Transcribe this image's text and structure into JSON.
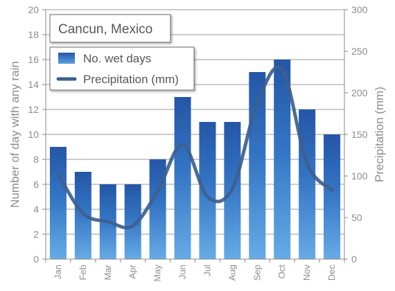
{
  "chart_data": {
    "type": "bar",
    "title": "Cancun, Mexico",
    "categories": [
      "Jan",
      "Feb",
      "Mar",
      "Apr",
      "May",
      "Jun",
      "Jul",
      "Aug",
      "Sep",
      "Oct",
      "Nov",
      "Dec"
    ],
    "series": [
      {
        "name": "No. wet days",
        "type": "bar",
        "axis": "left",
        "values": [
          9,
          7,
          6,
          6,
          8,
          13,
          11,
          11,
          15,
          16,
          12,
          10
        ]
      },
      {
        "name": "Precipitation (mm)",
        "type": "line",
        "axis": "right",
        "values": [
          102,
          55,
          45,
          40,
          82,
          138,
          75,
          85,
          188,
          228,
          115,
          83
        ]
      }
    ],
    "ylabel": "Number of day with any rain",
    "y2label": "Precipitation (mm)",
    "ylim": [
      0,
      20
    ],
    "y2lim": [
      0,
      300
    ],
    "yticks": [
      "0",
      "2",
      "4",
      "6",
      "8",
      "10",
      "12",
      "14",
      "16",
      "18",
      "20"
    ],
    "y2ticks": [
      "0",
      "50",
      "100",
      "150",
      "200",
      "250",
      "300"
    ],
    "grid": true,
    "legend_position": "top-left",
    "colors": {
      "bar_top": "#2456a6",
      "bar_bottom": "#66abe6",
      "line": "#3d5f8e"
    }
  }
}
